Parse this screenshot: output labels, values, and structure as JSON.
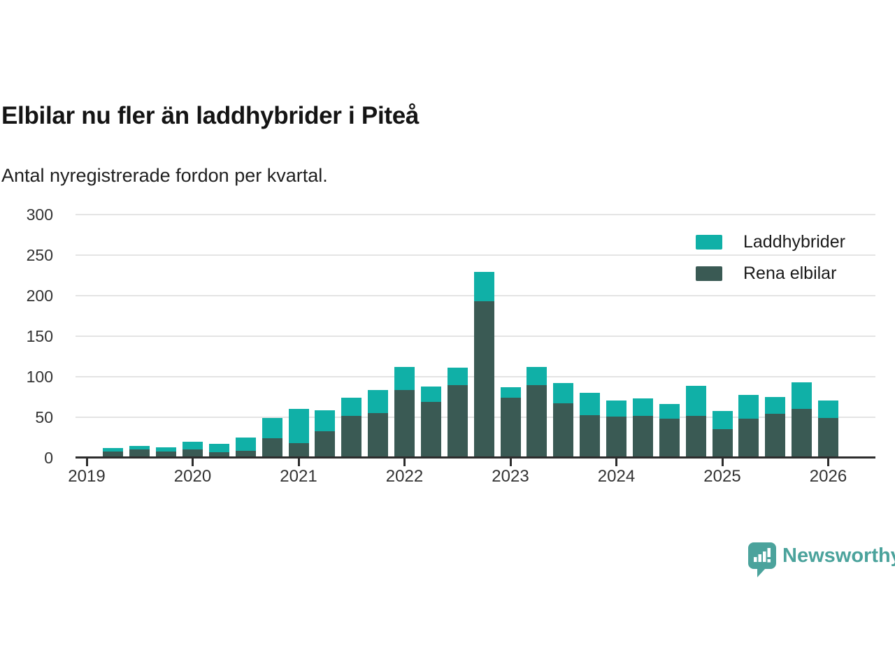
{
  "header": {
    "title": "Elbilar nu fler än laddhybrider i Piteå",
    "subtitle": "Antal nyregistrerade fordon per kvartal."
  },
  "chart_data": {
    "type": "bar",
    "stacked": true,
    "title": "Elbilar nu fler än laddhybrider i Piteå",
    "subtitle": "Antal nyregistrerade fordon per kvartal.",
    "categories": [
      "2019 Q2",
      "2019 Q3",
      "2019 Q4",
      "2020 Q1",
      "2020 Q2",
      "2020 Q3",
      "2020 Q4",
      "2021 Q1",
      "2021 Q2",
      "2021 Q3",
      "2021 Q4",
      "2022 Q1",
      "2022 Q2",
      "2022 Q3",
      "2022 Q4",
      "2023 Q1",
      "2023 Q2",
      "2023 Q3",
      "2023 Q4",
      "2024 Q1",
      "2024 Q2",
      "2024 Q3",
      "2024 Q4",
      "2025 Q1",
      "2025 Q2",
      "2025 Q3",
      "2025 Q4",
      "2026 Q1"
    ],
    "series": [
      {
        "name": "Laddhybrider",
        "color": "#10B0A7",
        "values": [
          4,
          5,
          5,
          10,
          10,
          16,
          25,
          42,
          26,
          22,
          29,
          28,
          19,
          21,
          36,
          13,
          22,
          25,
          27,
          20,
          21,
          18,
          37,
          23,
          30,
          21,
          33,
          22
        ]
      },
      {
        "name": "Rena elbilar",
        "color": "#3A5A54",
        "values": [
          8,
          10,
          8,
          10,
          7,
          9,
          24,
          18,
          33,
          52,
          55,
          84,
          69,
          90,
          193,
          74,
          90,
          67,
          53,
          51,
          52,
          48,
          52,
          35,
          48,
          54,
          60,
          49
        ]
      }
    ],
    "stack_order_bottom_to_top": [
      "Rena elbilar",
      "Laddhybrider"
    ],
    "xlabel": "",
    "ylabel": "",
    "x_tick_labels": [
      "2019",
      "2020",
      "2021",
      "2022",
      "2023",
      "2024",
      "2025",
      "2026"
    ],
    "y_ticks": [
      0,
      50,
      100,
      150,
      200,
      250,
      300
    ],
    "ylim": [
      0,
      300
    ],
    "grid": "horizontal",
    "legend_position": "top-right"
  },
  "branding": {
    "name": "Newsworthy",
    "color": "#4BA39C"
  }
}
